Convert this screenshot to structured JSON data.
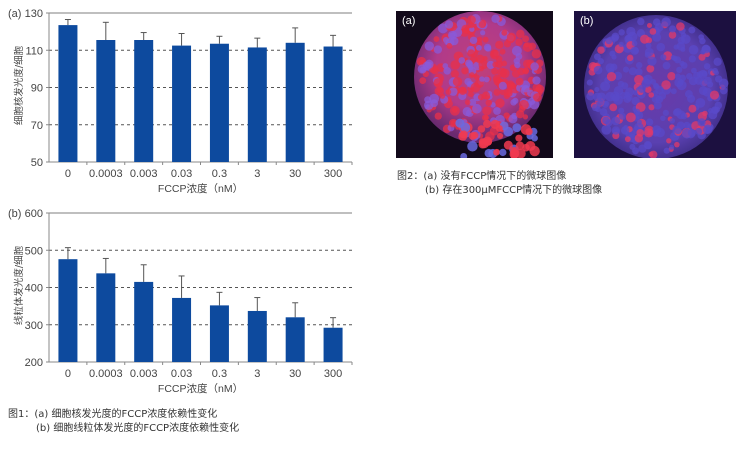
{
  "figure1": {
    "caption": {
      "line1": "图1：(a) 细胞核发光度的FCCP浓度依赖性变化",
      "line2": "(b) 细胞线粒体发光度的FCCP浓度依赖性变化"
    }
  },
  "figure2": {
    "panels": [
      {
        "label": "(a)"
      },
      {
        "label": "(b)"
      }
    ],
    "caption": {
      "line1": "图2：(a) 没有FCCP情况下的微球图像",
      "line2": "(b) 存在300μMFCCP情况下的微球图像"
    }
  },
  "colors": {
    "bar": "#0d4a9e",
    "axis": "#888888",
    "grid": "#555555",
    "micro_red": "#e8304a",
    "micro_blue": "#5a4ac8",
    "micro_bg": "#12091a"
  },
  "chart_data": [
    {
      "type": "bar",
      "panel": "(a)",
      "title": "",
      "xlabel": "FCCP浓度（nM）",
      "ylabel": "细胞核发光度/细胞",
      "categories": [
        "0",
        "0.0003",
        "0.003",
        "0.03",
        "0.3",
        "3",
        "30",
        "300"
      ],
      "values": [
        123.5,
        115.5,
        115.5,
        112.5,
        113.5,
        111.5,
        114,
        112
      ],
      "error_upper": [
        126.5,
        125,
        119.5,
        119,
        117.5,
        116.5,
        122,
        118
      ],
      "ylim": [
        50,
        130
      ],
      "yticks": [
        50,
        70,
        90,
        110,
        130
      ],
      "grid": "dashed horizontal at 70, 90, 110"
    },
    {
      "type": "bar",
      "panel": "(b)",
      "title": "",
      "xlabel": "FCCP浓度（nM）",
      "ylabel": "线粒体发光度/细胞",
      "categories": [
        "0",
        "0.0003",
        "0.003",
        "0.03",
        "0.3",
        "3",
        "30",
        "300"
      ],
      "values": [
        476,
        438,
        415,
        372,
        352,
        337,
        320,
        292
      ],
      "error_upper": [
        507,
        478,
        461,
        431,
        387,
        373,
        359,
        319
      ],
      "ylim": [
        200,
        600
      ],
      "yticks": [
        200,
        300,
        400,
        500,
        600
      ],
      "grid": "dashed horizontal at 300, 400, 500"
    }
  ]
}
